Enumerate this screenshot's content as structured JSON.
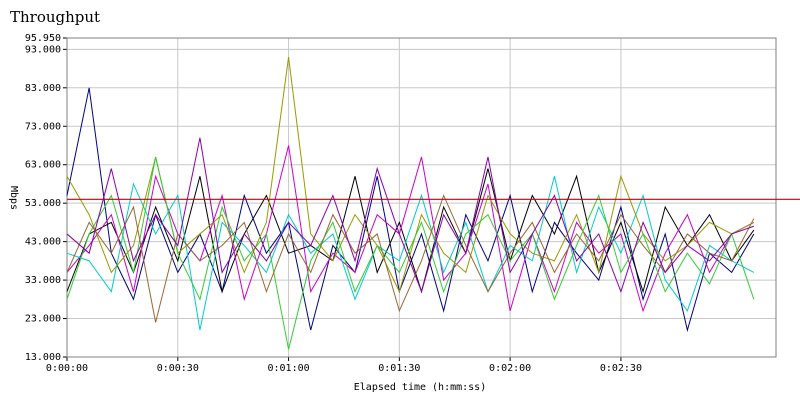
{
  "chart_data": {
    "type": "line",
    "title": "Throughput",
    "ylabel": "Mbps",
    "xlabel": "Elapsed time (h:mm:ss)",
    "x": [
      0,
      6,
      12,
      18,
      24,
      30,
      36,
      42,
      48,
      54,
      60,
      66,
      72,
      78,
      84,
      90,
      96,
      102,
      108,
      114,
      120,
      126,
      132,
      138,
      144,
      150,
      156,
      162,
      168,
      174,
      180,
      186
    ],
    "xlim": [
      0,
      192
    ],
    "xticks": [
      {
        "value": 0,
        "label": "0:00:00"
      },
      {
        "value": 30,
        "label": "0:00:30"
      },
      {
        "value": 60,
        "label": "0:01:00"
      },
      {
        "value": 90,
        "label": "0:01:30"
      },
      {
        "value": 120,
        "label": "0:02:00"
      },
      {
        "value": 150,
        "label": "0:02:30"
      }
    ],
    "ylim": [
      13,
      95.95
    ],
    "yticks": [
      {
        "value": 13,
        "label": "13.000"
      },
      {
        "value": 23,
        "label": "23.000"
      },
      {
        "value": 33,
        "label": "33.000"
      },
      {
        "value": 43,
        "label": "43.000"
      },
      {
        "value": 53,
        "label": "53.000"
      },
      {
        "value": 63,
        "label": "63.000"
      },
      {
        "value": 73,
        "label": "73.000"
      },
      {
        "value": 83,
        "label": "83.000"
      },
      {
        "value": 93,
        "label": "93.000"
      },
      {
        "value": 95.95,
        "label": "95.950"
      }
    ],
    "grid": true,
    "reference_line": {
      "value": 54,
      "color": "#cc0000"
    },
    "series": [
      {
        "color": "#000080",
        "values": [
          55,
          83,
          40,
          28,
          50,
          35,
          45,
          30,
          55,
          40,
          48,
          20,
          42,
          35,
          60,
          30,
          45,
          25,
          50,
          38,
          55,
          30,
          48,
          40,
          33,
          52,
          28,
          45,
          20,
          40,
          35,
          45
        ]
      },
      {
        "color": "#000000",
        "values": [
          30,
          45,
          48,
          35,
          52,
          38,
          60,
          30,
          45,
          55,
          40,
          42,
          38,
          60,
          35,
          48,
          30,
          52,
          40,
          62,
          38,
          55,
          45,
          60,
          35,
          48,
          30,
          52,
          42,
          50,
          38,
          46
        ]
      },
      {
        "color": "#cc00cc",
        "values": [
          35,
          42,
          50,
          30,
          60,
          45,
          38,
          55,
          28,
          45,
          68,
          30,
          40,
          35,
          50,
          45,
          65,
          33,
          40,
          58,
          25,
          45,
          30,
          48,
          40,
          45,
          25,
          40,
          50,
          35,
          45,
          48
        ]
      },
      {
        "color": "#00cccc",
        "values": [
          40,
          38,
          30,
          58,
          45,
          55,
          20,
          48,
          42,
          35,
          50,
          40,
          45,
          28,
          42,
          38,
          55,
          35,
          48,
          30,
          42,
          38,
          60,
          35,
          52,
          40,
          55,
          33,
          25,
          42,
          38,
          35
        ]
      },
      {
        "color": "#999900",
        "values": [
          60,
          50,
          35,
          42,
          65,
          40,
          45,
          50,
          35,
          48,
          91,
          45,
          38,
          50,
          42,
          30,
          50,
          40,
          35,
          55,
          45,
          40,
          38,
          50,
          35,
          60,
          45,
          38,
          42,
          48,
          45,
          48
        ]
      },
      {
        "color": "#33cc33",
        "values": [
          28,
          45,
          55,
          35,
          65,
          40,
          28,
          52,
          38,
          45,
          15,
          38,
          48,
          30,
          42,
          35,
          48,
          30,
          45,
          50,
          38,
          45,
          28,
          42,
          55,
          35,
          45,
          30,
          40,
          32,
          45,
          28
        ]
      },
      {
        "color": "#996633",
        "values": [
          35,
          48,
          40,
          52,
          22,
          45,
          38,
          42,
          48,
          30,
          45,
          35,
          50,
          40,
          45,
          25,
          38,
          55,
          42,
          30,
          40,
          48,
          35,
          45,
          38,
          50,
          42,
          35,
          45,
          40,
          38,
          49
        ]
      },
      {
        "color": "#8800aa",
        "values": [
          45,
          40,
          62,
          38,
          50,
          42,
          70,
          35,
          45,
          38,
          48,
          42,
          55,
          38,
          62,
          45,
          30,
          50,
          40,
          65,
          35,
          45,
          55,
          38,
          45,
          30,
          48,
          35,
          42,
          38,
          45,
          47
        ]
      }
    ]
  }
}
